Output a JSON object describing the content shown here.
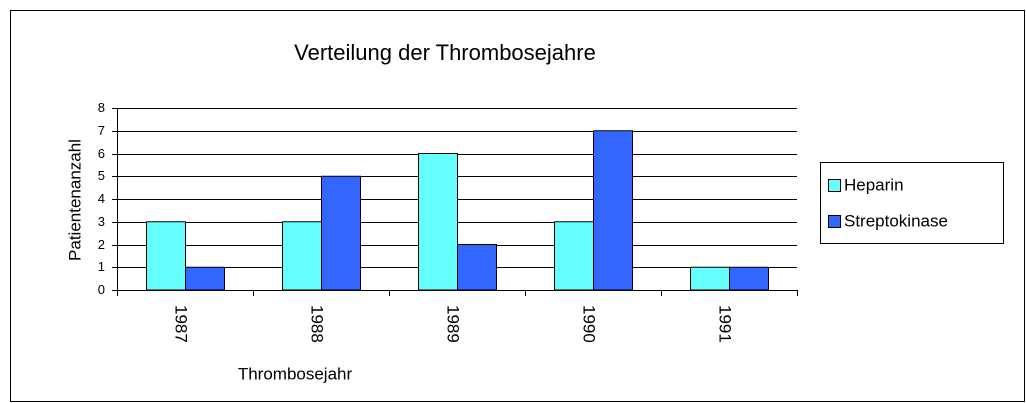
{
  "chart_data": {
    "type": "bar",
    "title": "Verteilung der Thrombosejahre",
    "xlabel": "Thrombosejahr",
    "ylabel": "Patientenanzahl",
    "categories": [
      "1987",
      "1988",
      "1989",
      "1990",
      "1991"
    ],
    "series": [
      {
        "name": "Heparin",
        "color": "#66ffff",
        "values": [
          3,
          3,
          6,
          3,
          1
        ]
      },
      {
        "name": "Streptokinase",
        "color": "#3366ff",
        "values": [
          1,
          5,
          2,
          7,
          1
        ]
      }
    ],
    "ylim": [
      0,
      8
    ],
    "yticks": [
      0,
      1,
      2,
      3,
      4,
      5,
      6,
      7,
      8
    ],
    "grid": true,
    "legend": "right"
  }
}
